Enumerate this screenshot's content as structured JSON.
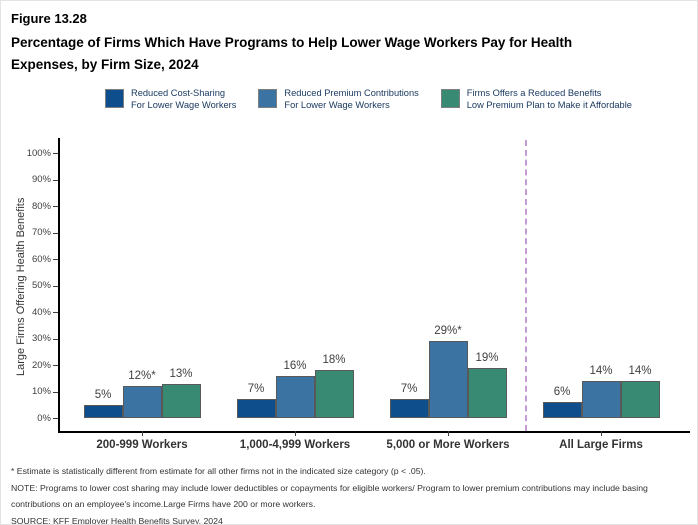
{
  "header": {
    "figure_label": "Figure 13.28",
    "title": "Percentage of Firms Which Have Programs to Help Lower Wage Workers Pay for Health Expenses, by Firm Size, 2024"
  },
  "legend": {
    "items": [
      {
        "line1": "Reduced Cost-Sharing",
        "line2": "For Lower Wage Workers",
        "color": "#0F4E8C"
      },
      {
        "line1": "Reduced Premium Contributions",
        "line2": "For Lower Wage Workers",
        "color": "#3B73A3"
      },
      {
        "line1": "Firms Offers a Reduced Benefits",
        "line2": "Low Premium Plan to Make it Affordable",
        "color": "#398A72"
      }
    ]
  },
  "chart_data": {
    "type": "bar",
    "title": "Percentage of Firms Which Have Programs to Help Lower Wage Workers Pay for Health Expenses, by Firm Size, 2024",
    "figure_label": "Figure 13.28",
    "categories": [
      "200-999 Workers",
      "1,000-4,999 Workers",
      "5,000 or More Workers",
      "All Large Firms"
    ],
    "series": [
      {
        "name": "Reduced Cost-Sharing For Lower Wage Workers",
        "color": "#0F4E8C",
        "values": [
          5,
          7,
          7,
          6
        ],
        "labels": [
          "5%",
          "7%",
          "7%",
          "6%"
        ]
      },
      {
        "name": "Reduced Premium Contributions For Lower Wage Workers",
        "color": "#3B73A3",
        "values": [
          12,
          16,
          29,
          14
        ],
        "labels": [
          "12%*",
          "16%",
          "29%*",
          "14%"
        ]
      },
      {
        "name": "Firms Offers a Reduced Benefits Low Premium Plan to Make it Affordable",
        "color": "#398A72",
        "values": [
          13,
          18,
          19,
          14
        ],
        "labels": [
          "13%",
          "18%",
          "19%",
          "14%"
        ]
      }
    ],
    "ylabel": "Large Firms Offering Health Benefits",
    "xlabel": "",
    "ylim": [
      0,
      100
    ],
    "yticks": [
      "0%",
      "10%",
      "20%",
      "30%",
      "40%",
      "50%",
      "60%",
      "70%",
      "80%",
      "90%",
      "100%"
    ],
    "grid": false,
    "legend_position": "top",
    "separator_after_category_index": 2,
    "separator_color": "#C49BD4"
  },
  "footnotes": {
    "asterisk": "* Estimate is statistically different from estimate for all other firms not in the indicated size category (p < .05).",
    "note": "NOTE: Programs to lower cost sharing may include lower deductibles or copayments for eligible workers/ Program to lower premium contributions may include basing contributions on an employee's income.Large Firms have 200 or more workers.",
    "source": "SOURCE: KFF Employer Health Benefits Survey, 2024"
  }
}
